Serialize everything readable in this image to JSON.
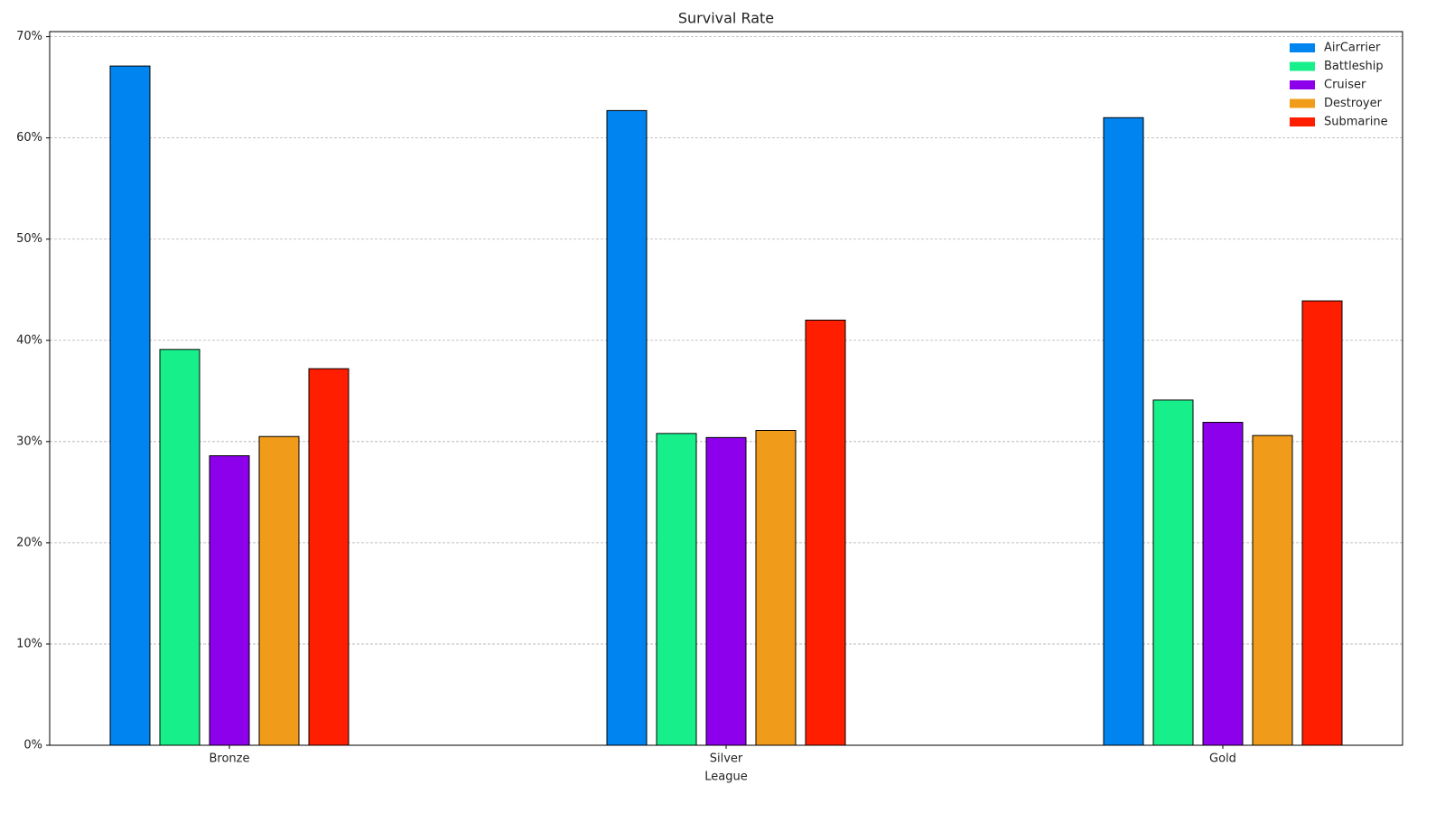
{
  "chart_data": {
    "type": "bar",
    "title": "Survival Rate",
    "x_label": "League",
    "categories": [
      "Bronze",
      "Silver",
      "Gold"
    ],
    "series": [
      {
        "name": "AirCarrier",
        "color": "#0084f0",
        "values": [
          67.1,
          62.7,
          62.0
        ]
      },
      {
        "name": "Battleship",
        "color": "#17f08a",
        "values": [
          39.1,
          30.8,
          34.1
        ]
      },
      {
        "name": "Cruiser",
        "color": "#8c00ec",
        "values": [
          28.6,
          30.4,
          31.9
        ]
      },
      {
        "name": "Destroyer",
        "color": "#f09c1a",
        "values": [
          30.5,
          31.1,
          30.6
        ]
      },
      {
        "name": "Submarine",
        "color": "#ff1e00",
        "values": [
          37.2,
          42.0,
          43.9
        ]
      }
    ],
    "ylim": [
      0,
      70.5
    ],
    "yticks": [
      {
        "value": 0,
        "label": "0%"
      },
      {
        "value": 10,
        "label": "10%"
      },
      {
        "value": 20,
        "label": "20%"
      },
      {
        "value": 30,
        "label": "30%"
      },
      {
        "value": 40,
        "label": "40%"
      },
      {
        "value": 50,
        "label": "50%"
      },
      {
        "value": 60,
        "label": "60%"
      },
      {
        "value": 70,
        "label": "70%"
      }
    ],
    "grid": true,
    "legend": "upper right"
  }
}
